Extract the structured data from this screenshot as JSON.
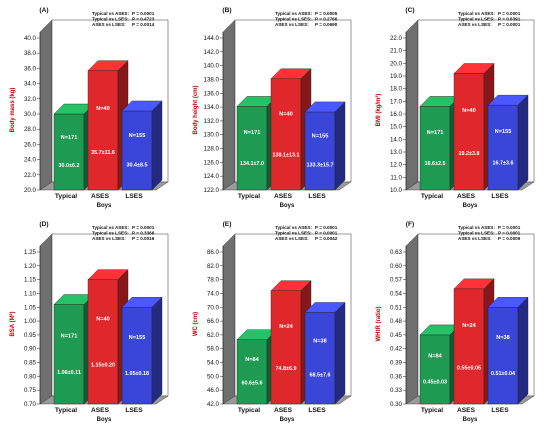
{
  "colors": {
    "typical": "#1f9a52",
    "ases": "#e0282c",
    "lses": "#3a46d8",
    "panel_wall": "#9a9a9a",
    "panel_wall_side": "#6f6f6f",
    "floor": "#9a9a9a"
  },
  "chart_data": [
    {
      "type": "bar",
      "panel_label": "(A)",
      "categories": [
        "Typical",
        "ASES",
        "LSES"
      ],
      "values": [
        30.0,
        35.7,
        30.4
      ],
      "n_labels": [
        "N=171",
        "N=40",
        "N=155"
      ],
      "value_labels": [
        "30.0±6.2",
        "35.7±11.6",
        "30.4±8.5"
      ],
      "ylabel": "Body mass (kg)",
      "xlabel": "Boys",
      "ylim": [
        20.0,
        40.0
      ],
      "yticks": [
        "20.0",
        "22.0",
        "24.0",
        "26.0",
        "28.0",
        "30.0",
        "32.0",
        "34.0",
        "36.0",
        "38.0",
        "40.0"
      ],
      "stats": [
        {
          "label": "Typical vs ASES:",
          "p": "P = 0.0001"
        },
        {
          "label": "Typical vs LSES:",
          "p": "P = 0.4723"
        },
        {
          "label": "ASES vs LSES:",
          "p": "P = 0.0014"
        }
      ]
    },
    {
      "type": "bar",
      "panel_label": "(B)",
      "categories": [
        "Typical",
        "ASES",
        "LSES"
      ],
      "values": [
        134.1,
        138.1,
        133.3
      ],
      "n_labels": [
        "N=171",
        "N=40",
        "N=155"
      ],
      "value_labels": [
        "134.1±7.0",
        "138.1±13.1",
        "133.3±15.7"
      ],
      "ylabel": "Body height (cm)",
      "xlabel": "Boys",
      "ylim": [
        122.0,
        144.0
      ],
      "yticks": [
        "122.0",
        "124.0",
        "126.0",
        "128.0",
        "130.0",
        "132.0",
        "134.0",
        "136.0",
        "138.0",
        "140.0",
        "142.0",
        "144.0"
      ],
      "stats": [
        {
          "label": "Typical vs ASES:",
          "p": "P = 0.0005"
        },
        {
          "label": "Typical vs LSES:",
          "p": "P = 0.2766"
        },
        {
          "label": "ASES vs LSES:",
          "p": "P = 0.0690"
        }
      ]
    },
    {
      "type": "bar",
      "panel_label": "(C)",
      "categories": [
        "Typical",
        "ASES",
        "LSES"
      ],
      "values": [
        16.6,
        19.2,
        16.7
      ],
      "n_labels": [
        "N=171",
        "N=40",
        "N=155"
      ],
      "value_labels": [
        "16.6±2.5",
        "19.2±3.8",
        "16.7±3.6"
      ],
      "ylabel": "BMI (kg/m²)",
      "xlabel": "Boys",
      "ylim": [
        10.0,
        22.0
      ],
      "yticks": [
        "10.0",
        "11.0",
        "12.0",
        "13.0",
        "14.0",
        "15.0",
        "16.0",
        "17.0",
        "18.0",
        "19.0",
        "20.0",
        "21.0",
        "22.0"
      ],
      "stats": [
        {
          "label": "Typical vs ASES:",
          "p": "P = 0.0001"
        },
        {
          "label": "Typical vs LSES:",
          "p": "P = 0.6391"
        },
        {
          "label": "ASES vs LSES:",
          "p": "P = 0.0001"
        }
      ]
    },
    {
      "type": "bar",
      "panel_label": "(D)",
      "categories": [
        "Typical",
        "ASES",
        "LSES"
      ],
      "values": [
        1.06,
        1.15,
        1.05
      ],
      "n_labels": [
        "N=171",
        "N=40",
        "N=155"
      ],
      "value_labels": [
        "1.06±0.11",
        "1.15±0.20",
        "1.05±0.18"
      ],
      "ylabel": "BSA (M²)",
      "xlabel": "Boys",
      "ylim": [
        0.7,
        1.25
      ],
      "yticks": [
        "0.70",
        "0.75",
        "0.80",
        "0.85",
        "0.90",
        "0.95",
        "1.00",
        "1.05",
        "1.10",
        "1.15",
        "1.20",
        "1.25"
      ],
      "stats": [
        {
          "label": "Typical vs ASES:",
          "p": "P = 0.0001"
        },
        {
          "label": "Typical vs LSES:",
          "p": "P = 0.3366"
        },
        {
          "label": "ASES vs LSES:",
          "p": "P = 0.0016"
        }
      ]
    },
    {
      "type": "bar",
      "panel_label": "(E)",
      "categories": [
        "Typical",
        "ASES",
        "LSES"
      ],
      "values": [
        60.6,
        74.8,
        68.5
      ],
      "n_labels": [
        "N=84",
        "N=24",
        "N=38"
      ],
      "value_labels": [
        "60.6±5.6",
        "74.8±6.9",
        "68.5±7.6"
      ],
      "ylabel": "WC (cm)",
      "xlabel": "Boys",
      "ylim": [
        42.0,
        86.0
      ],
      "yticks": [
        "42.0",
        "46.0",
        "50.0",
        "54.0",
        "58.0",
        "62.0",
        "66.0",
        "70.0",
        "74.0",
        "78.0",
        "82.0",
        "86.0"
      ],
      "stats": [
        {
          "label": "Typical vs ASES:",
          "p": "P = 0.0001"
        },
        {
          "label": "Typical vs LSES:",
          "p": "P = 0.0001"
        },
        {
          "label": "ASES vs LSES:",
          "p": "P = 0.0042"
        }
      ]
    },
    {
      "type": "bar",
      "panel_label": "(F)",
      "categories": [
        "Typical",
        "ASES",
        "LSES"
      ],
      "values": [
        0.45,
        0.55,
        0.51
      ],
      "n_labels": [
        "N=84",
        "N=24",
        "N=38"
      ],
      "value_labels": [
        "0.45±0.03",
        "0.55±0.05",
        "0.51±0.04"
      ],
      "ylabel": "WHtR (ratio)",
      "xlabel": "Boys",
      "ylim": [
        0.3,
        0.63
      ],
      "yticks": [
        "0.30",
        "0.33",
        "0.36",
        "0.39",
        "0.42",
        "0.45",
        "0.48",
        "0.51",
        "0.54",
        "0.57",
        "0.60",
        "0.63"
      ],
      "stats": [
        {
          "label": "Typical vs ASES:",
          "p": "P = 0.0001"
        },
        {
          "label": "Typical vs LSES:",
          "p": "P = 0.0001"
        },
        {
          "label": "ASES vs LSES:",
          "p": "P = 0.0009"
        }
      ]
    }
  ]
}
